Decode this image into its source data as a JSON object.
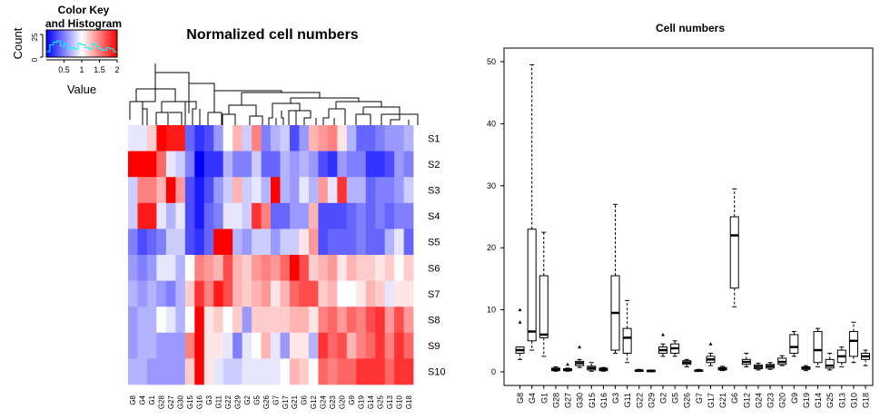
{
  "heatmap": {
    "title": "Normalized cell numbers",
    "color_key": {
      "title_line1": "Color Key",
      "title_line2": "and Histogram",
      "ylabel": "Count",
      "xlabel": "Value",
      "x_ticks": [
        "0.5",
        "1",
        "1.5",
        "2"
      ],
      "y_ticks": [
        "0",
        "25"
      ],
      "colors": {
        "low": "#0000ff",
        "mid": "#ffffff",
        "high": "#ff0000"
      }
    },
    "col_labels": [
      "G8",
      "G4",
      "G1",
      "G28",
      "G27",
      "G30",
      "G15",
      "G16",
      "G3",
      "G11",
      "G22",
      "G29",
      "G2",
      "G5",
      "G26",
      "G7",
      "G17",
      "G21",
      "G6",
      "G12",
      "G24",
      "G23",
      "G20",
      "G9",
      "G19",
      "G14",
      "G25",
      "G13",
      "G10",
      "G18"
    ],
    "row_labels": [
      "S1",
      "S2",
      "S3",
      "S4",
      "S5",
      "S6",
      "S7",
      "S8",
      "S9",
      "S10"
    ],
    "values": [
      [
        0.9,
        0.9,
        1.2,
        2.0,
        1.9,
        1.9,
        0.4,
        0.2,
        0.3,
        0.6,
        1.0,
        1.3,
        0.8,
        1.5,
        0.5,
        0.7,
        0.8,
        0.3,
        0.6,
        1.3,
        1.4,
        1.5,
        1.1,
        0.7,
        0.4,
        0.4,
        0.5,
        0.6,
        0.6,
        0.7
      ],
      [
        2.0,
        2.0,
        2.0,
        1.6,
        0.9,
        0.8,
        0.5,
        0.0,
        0.2,
        0.2,
        0.7,
        0.5,
        0.5,
        0.8,
        0.4,
        0.4,
        0.7,
        0.6,
        0.7,
        0.6,
        0.3,
        0.2,
        0.6,
        0.5,
        0.5,
        0.2,
        0.2,
        0.3,
        0.6,
        0.5
      ],
      [
        0.8,
        1.5,
        1.5,
        1.3,
        2.0,
        1.4,
        0.3,
        0.1,
        0.3,
        0.6,
        0.8,
        1.3,
        0.8,
        0.9,
        0.7,
        2.0,
        0.7,
        0.6,
        0.9,
        0.7,
        1.4,
        0.9,
        1.8,
        0.7,
        0.7,
        0.4,
        0.5,
        0.5,
        0.6,
        0.8
      ],
      [
        0.8,
        1.9,
        1.9,
        0.9,
        0.7,
        0.9,
        0.3,
        0.1,
        0.4,
        0.5,
        0.9,
        0.9,
        0.8,
        1.8,
        1.5,
        0.4,
        0.4,
        0.6,
        0.6,
        1.3,
        0.3,
        0.3,
        0.3,
        0.4,
        0.5,
        0.4,
        0.5,
        0.4,
        0.5,
        0.5
      ],
      [
        0.5,
        0.3,
        0.4,
        0.5,
        0.8,
        0.8,
        0.3,
        0.2,
        0.4,
        2.0,
        2.0,
        0.7,
        0.6,
        0.8,
        0.8,
        0.6,
        0.8,
        0.8,
        1.1,
        1.4,
        0.3,
        0.4,
        0.4,
        0.4,
        0.5,
        0.4,
        0.4,
        0.7,
        0.9,
        0.4
      ],
      [
        0.6,
        0.5,
        0.6,
        0.9,
        0.9,
        0.7,
        1.0,
        1.5,
        1.4,
        1.3,
        1.7,
        1.3,
        1.2,
        1.4,
        1.5,
        1.4,
        1.6,
        2.0,
        1.7,
        1.2,
        1.3,
        1.4,
        1.1,
        1.3,
        1.2,
        1.2,
        1.1,
        1.2,
        1.0,
        1.2
      ],
      [
        0.7,
        0.6,
        0.7,
        0.6,
        0.5,
        0.7,
        1.2,
        1.8,
        1.5,
        1.9,
        1.7,
        1.3,
        1.2,
        1.3,
        1.4,
        1.1,
        1.3,
        1.6,
        1.7,
        1.7,
        1.2,
        1.3,
        1.0,
        1.0,
        1.1,
        1.3,
        1.2,
        0.9,
        1.1,
        1.1
      ],
      [
        0.6,
        0.7,
        0.7,
        1.0,
        0.9,
        0.7,
        1.0,
        2.0,
        1.1,
        1.2,
        1.0,
        1.2,
        0.6,
        1.2,
        1.2,
        1.2,
        1.2,
        1.3,
        1.3,
        1.1,
        1.5,
        1.6,
        1.4,
        1.6,
        1.5,
        1.7,
        1.8,
        1.4,
        1.7,
        1.4
      ],
      [
        0.6,
        0.7,
        0.7,
        0.6,
        0.6,
        0.6,
        1.5,
        2.0,
        1.1,
        1.1,
        0.9,
        0.5,
        0.9,
        1.0,
        1.3,
        0.9,
        0.6,
        1.1,
        1.1,
        0.7,
        1.8,
        1.6,
        1.7,
        1.3,
        1.5,
        1.6,
        1.8,
        1.5,
        1.8,
        1.6
      ],
      [
        0.7,
        0.7,
        0.6,
        0.6,
        0.6,
        0.6,
        1.2,
        2.0,
        1.1,
        0.9,
        0.8,
        0.8,
        0.9,
        0.9,
        0.9,
        0.9,
        1.0,
        1.3,
        1.2,
        1.0,
        1.6,
        1.5,
        1.6,
        1.6,
        1.8,
        1.8,
        1.8,
        1.6,
        1.8,
        1.8
      ]
    ]
  },
  "chart_data": {
    "type": "box",
    "title": "Cell numbers",
    "xlabel": "",
    "ylabel": "",
    "ylim": [
      0,
      52
    ],
    "y_ticks": [
      "0",
      "10",
      "20",
      "30",
      "40",
      "50"
    ],
    "categories": [
      "G8",
      "G4",
      "G1",
      "G28",
      "G27",
      "G30",
      "G15",
      "G16",
      "G3",
      "G11",
      "G22",
      "G29",
      "G2",
      "G5",
      "G26",
      "G7",
      "G17",
      "G21",
      "G6",
      "G12",
      "G24",
      "G23",
      "G20",
      "G9",
      "G19",
      "G14",
      "G25",
      "G13",
      "G10",
      "G18"
    ],
    "boxes": [
      {
        "label": "G8",
        "q1": 3.0,
        "median": 3.5,
        "q3": 4.0,
        "whisker_low": 2.0,
        "whisker_high": 4.0,
        "outliers": [
          8.0,
          10.0
        ]
      },
      {
        "label": "G4",
        "q1": 5.0,
        "median": 6.5,
        "q3": 23.0,
        "whisker_low": 3.5,
        "whisker_high": 49.5,
        "outliers": []
      },
      {
        "label": "G1",
        "q1": 5.5,
        "median": 6.0,
        "q3": 15.5,
        "whisker_low": 2.5,
        "whisker_high": 22.5,
        "outliers": []
      },
      {
        "label": "G28",
        "q1": 0.2,
        "median": 0.4,
        "q3": 0.6,
        "whisker_low": 0.1,
        "whisker_high": 0.8,
        "outliers": []
      },
      {
        "label": "G27",
        "q1": 0.2,
        "median": 0.3,
        "q3": 0.5,
        "whisker_low": 0.1,
        "whisker_high": 0.6,
        "outliers": [
          1.2
        ]
      },
      {
        "label": "G30",
        "q1": 1.0,
        "median": 1.4,
        "q3": 1.7,
        "whisker_low": 0.7,
        "whisker_high": 2.0,
        "outliers": [
          4.0
        ]
      },
      {
        "label": "G15",
        "q1": 0.3,
        "median": 0.6,
        "q3": 0.9,
        "whisker_low": 0.1,
        "whisker_high": 1.5,
        "outliers": []
      },
      {
        "label": "G16",
        "q1": 0.2,
        "median": 0.4,
        "q3": 0.6,
        "whisker_low": 0.1,
        "whisker_high": 0.7,
        "outliers": []
      },
      {
        "label": "G3",
        "q1": 3.5,
        "median": 9.5,
        "q3": 15.5,
        "whisker_low": 3.0,
        "whisker_high": 27.0,
        "outliers": []
      },
      {
        "label": "G11",
        "q1": 3.0,
        "median": 5.5,
        "q3": 7.0,
        "whisker_low": 1.5,
        "whisker_high": 11.5,
        "outliers": []
      },
      {
        "label": "G22",
        "q1": 0.1,
        "median": 0.2,
        "q3": 0.3,
        "whisker_low": 0.05,
        "whisker_high": 0.4,
        "outliers": []
      },
      {
        "label": "G29",
        "q1": 0.05,
        "median": 0.15,
        "q3": 0.25,
        "whisker_low": 0.0,
        "whisker_high": 0.3,
        "outliers": []
      },
      {
        "label": "G2",
        "q1": 3.0,
        "median": 3.5,
        "q3": 4.0,
        "whisker_low": 2.5,
        "whisker_high": 4.5,
        "outliers": [
          6.0
        ]
      },
      {
        "label": "G5",
        "q1": 3.0,
        "median": 3.8,
        "q3": 4.5,
        "whisker_low": 2.5,
        "whisker_high": 5.0,
        "outliers": []
      },
      {
        "label": "G26",
        "q1": 1.2,
        "median": 1.5,
        "q3": 1.8,
        "whisker_low": 0.8,
        "whisker_high": 2.0,
        "outliers": []
      },
      {
        "label": "G7",
        "q1": 0.1,
        "median": 0.2,
        "q3": 0.3,
        "whisker_low": 0.05,
        "whisker_high": 0.4,
        "outliers": []
      },
      {
        "label": "G17",
        "q1": 1.5,
        "median": 2.0,
        "q3": 2.5,
        "whisker_low": 1.0,
        "whisker_high": 3.0,
        "outliers": [
          4.5
        ]
      },
      {
        "label": "G21",
        "q1": 0.3,
        "median": 0.5,
        "q3": 0.7,
        "whisker_low": 0.2,
        "whisker_high": 0.9,
        "outliers": []
      },
      {
        "label": "G6",
        "q1": 13.5,
        "median": 22.0,
        "q3": 25.0,
        "whisker_low": 10.5,
        "whisker_high": 29.5,
        "outliers": []
      },
      {
        "label": "G12",
        "q1": 1.2,
        "median": 1.6,
        "q3": 2.0,
        "whisker_low": 0.8,
        "whisker_high": 3.0,
        "outliers": []
      },
      {
        "label": "G24",
        "q1": 0.5,
        "median": 0.8,
        "q3": 1.1,
        "whisker_low": 0.3,
        "whisker_high": 1.4,
        "outliers": []
      },
      {
        "label": "G23",
        "q1": 0.6,
        "median": 0.9,
        "q3": 1.2,
        "whisker_low": 0.4,
        "whisker_high": 1.5,
        "outliers": []
      },
      {
        "label": "G20",
        "q1": 1.2,
        "median": 1.6,
        "q3": 2.2,
        "whisker_low": 1.0,
        "whisker_high": 2.6,
        "outliers": []
      },
      {
        "label": "G9",
        "q1": 3.0,
        "median": 4.0,
        "q3": 6.0,
        "whisker_low": 2.5,
        "whisker_high": 6.5,
        "outliers": []
      },
      {
        "label": "G19",
        "q1": 0.4,
        "median": 0.6,
        "q3": 0.8,
        "whisker_low": 0.2,
        "whisker_high": 1.0,
        "outliers": []
      },
      {
        "label": "G14",
        "q1": 1.5,
        "median": 3.5,
        "q3": 6.5,
        "whisker_low": 0.8,
        "whisker_high": 7.0,
        "outliers": []
      },
      {
        "label": "G25",
        "q1": 0.6,
        "median": 1.0,
        "q3": 2.0,
        "whisker_low": 0.3,
        "whisker_high": 3.0,
        "outliers": []
      },
      {
        "label": "G13",
        "q1": 1.5,
        "median": 2.5,
        "q3": 3.5,
        "whisker_low": 0.8,
        "whisker_high": 4.0,
        "outliers": []
      },
      {
        "label": "G10",
        "q1": 2.5,
        "median": 5.0,
        "q3": 6.5,
        "whisker_low": 1.5,
        "whisker_high": 8.0,
        "outliers": []
      },
      {
        "label": "G18",
        "q1": 2.0,
        "median": 2.5,
        "q3": 3.0,
        "whisker_low": 1.0,
        "whisker_high": 3.5,
        "outliers": []
      }
    ]
  }
}
